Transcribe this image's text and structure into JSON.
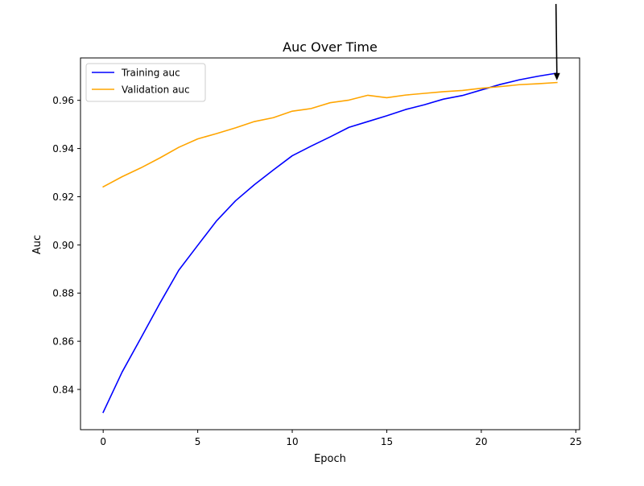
{
  "chart_data": {
    "type": "line",
    "title": "Auc Over Time",
    "xlabel": "Epoch",
    "ylabel": "Auc",
    "xlim": [
      -1.2,
      25.2
    ],
    "ylim": [
      0.8233,
      0.9776
    ],
    "xticks": [
      0,
      5,
      10,
      15,
      20,
      25
    ],
    "xtick_labels": [
      "0",
      "5",
      "10",
      "15",
      "20",
      "25"
    ],
    "yticks": [
      0.84,
      0.86,
      0.88,
      0.9,
      0.92,
      0.94,
      0.96
    ],
    "ytick_labels": [
      "0.84",
      "0.86",
      "0.88",
      "0.90",
      "0.92",
      "0.94",
      "0.96"
    ],
    "grid": false,
    "legend_position": "upper-left",
    "x": [
      0,
      1,
      2,
      3,
      4,
      5,
      6,
      7,
      8,
      9,
      10,
      11,
      12,
      13,
      14,
      15,
      16,
      17,
      18,
      19,
      20,
      21,
      22,
      23,
      24
    ],
    "series": [
      {
        "name": "Training auc",
        "color": "#0000ff",
        "values": [
          0.8305,
          0.8472,
          0.8614,
          0.8758,
          0.8895,
          0.8998,
          0.91,
          0.9183,
          0.925,
          0.9311,
          0.937,
          0.941,
          0.9448,
          0.9488,
          0.9512,
          0.9536,
          0.9562,
          0.9582,
          0.9605,
          0.962,
          0.9643,
          0.9666,
          0.9685,
          0.97,
          0.9713
        ]
      },
      {
        "name": "Validation auc",
        "color": "#ffa500",
        "values": [
          0.9241,
          0.9283,
          0.932,
          0.9361,
          0.9405,
          0.944,
          0.9462,
          0.9486,
          0.9512,
          0.9528,
          0.9555,
          0.9566,
          0.959,
          0.9601,
          0.9621,
          0.9611,
          0.9622,
          0.9629,
          0.9636,
          0.9641,
          0.965,
          0.9657,
          0.9665,
          0.9669,
          0.9674
        ]
      }
    ],
    "annotation": {
      "type": "arrow",
      "color": "#000000",
      "target": {
        "x": 24,
        "y": 0.9683
      },
      "tail": {
        "x": 23.95,
        "y": 1.0
      }
    }
  }
}
